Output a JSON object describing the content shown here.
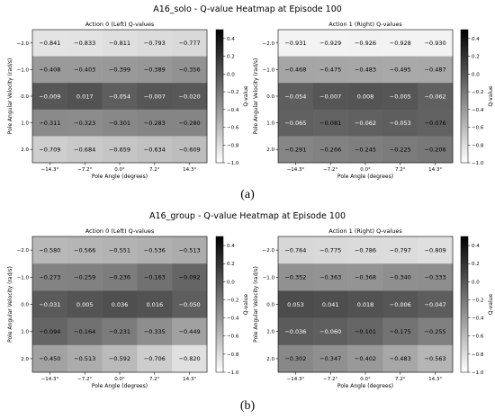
{
  "captions": [
    "(a)",
    "(b)"
  ],
  "color_scale": {
    "low": "#ffffff",
    "high": "#000000"
  },
  "chart_data": [
    {
      "type": "heatmap",
      "suptitle": "A16_solo - Q-value Heatmap at Episode 100",
      "panels": [
        {
          "title": "Action 0 (Left) Q-values",
          "xlabel": "Pole Angle (degrees)",
          "ylabel": "Pole Angular Velocity (rad/s)",
          "x_ticks": [
            "−14.3°",
            "−7.2°",
            "0.0°",
            "7.2°",
            "14.3°"
          ],
          "y_ticks": [
            "−2.0",
            "−1.0",
            "0.0",
            "1.0",
            "2.0"
          ],
          "values": [
            [
              -0.841,
              -0.833,
              -0.811,
              -0.793,
              -0.777
            ],
            [
              -0.408,
              -0.403,
              -0.399,
              -0.389,
              -0.356
            ],
            [
              -0.009,
              0.017,
              -0.054,
              -0.007,
              -0.02
            ],
            [
              -0.311,
              -0.323,
              -0.301,
              -0.283,
              -0.28
            ],
            [
              -0.709,
              -0.684,
              -0.659,
              -0.634,
              -0.609
            ]
          ],
          "labels": [
            [
              "−0.841",
              "−0.833",
              "−0.811",
              "−0.793",
              "−0.777"
            ],
            [
              "−0.408",
              "−0.403",
              "−0.399",
              "−0.389",
              "−0.356"
            ],
            [
              "−0.009",
              "0.017",
              "−0.054",
              "−0.007",
              "−0.020"
            ],
            [
              "−0.311",
              "−0.323",
              "−0.301",
              "−0.283",
              "−0.280"
            ],
            [
              "−0.709",
              "−0.684",
              "−0.659",
              "−0.634",
              "−0.609"
            ]
          ],
          "colorbar": {
            "label": "Q-value",
            "min": -1.0,
            "max": 0.5,
            "ticks": [
              0.4,
              0.2,
              0.0,
              -0.2,
              -0.4,
              -0.6,
              -0.8,
              -1.0
            ],
            "tick_labels": [
              "0.4",
              "0.2",
              "0.0",
              "−0.2",
              "−0.4",
              "−0.6",
              "−0.8",
              "−1.0"
            ]
          }
        },
        {
          "title": "Action 1 (Right) Q-values",
          "xlabel": "Pole Angle (degrees)",
          "ylabel": "Pole Angular Velocity (rad/s)",
          "x_ticks": [
            "−14.3°",
            "−7.2°",
            "0.0°",
            "7.2°",
            "14.3°"
          ],
          "y_ticks": [
            "−2.0",
            "−1.0",
            "0.0",
            "1.0",
            "2.0"
          ],
          "values": [
            [
              -0.931,
              -0.929,
              -0.926,
              -0.928,
              -0.93
            ],
            [
              -0.468,
              -0.475,
              -0.483,
              -0.495,
              -0.487
            ],
            [
              -0.054,
              -0.007,
              0.008,
              -0.005,
              -0.062
            ],
            [
              -0.065,
              -0.081,
              -0.062,
              -0.053,
              -0.076
            ],
            [
              -0.291,
              -0.266,
              -0.245,
              -0.225,
              -0.206
            ]
          ],
          "labels": [
            [
              "−0.931",
              "−0.929",
              "−0.926",
              "−0.928",
              "−0.930"
            ],
            [
              "−0.468",
              "−0.475",
              "−0.483",
              "−0.495",
              "−0.487"
            ],
            [
              "−0.054",
              "−0.007",
              "0.008",
              "−0.005",
              "−0.062"
            ],
            [
              "−0.065",
              "−0.081",
              "−0.062",
              "−0.053",
              "−0.076"
            ],
            [
              "−0.291",
              "−0.266",
              "−0.245",
              "−0.225",
              "−0.206"
            ]
          ],
          "colorbar": {
            "label": "Q-value",
            "min": -1.0,
            "max": 0.5,
            "ticks": [
              0.4,
              0.2,
              0.0,
              -0.2,
              -0.4,
              -0.6,
              -0.8,
              -1.0
            ],
            "tick_labels": [
              "0.4",
              "0.2",
              "0.0",
              "−0.2",
              "−0.4",
              "−0.6",
              "−0.8",
              "−1.0"
            ]
          }
        }
      ]
    },
    {
      "type": "heatmap",
      "suptitle": "A16_group - Q-value Heatmap at Episode 100",
      "panels": [
        {
          "title": "Action 0 (Left) Q-values",
          "xlabel": "Pole Angle (degrees)",
          "ylabel": "Pole Angular Velocity (rad/s)",
          "x_ticks": [
            "−14.3°",
            "−7.2°",
            "0.0°",
            "7.2°",
            "14.3°"
          ],
          "y_ticks": [
            "−2.0",
            "−1.0",
            "0.0",
            "1.0",
            "2.0"
          ],
          "values": [
            [
              -0.58,
              -0.566,
              -0.551,
              -0.536,
              -0.513
            ],
            [
              -0.273,
              -0.259,
              -0.236,
              -0.163,
              -0.092
            ],
            [
              -0.031,
              0.005,
              0.036,
              0.016,
              -0.05
            ],
            [
              -0.094,
              -0.164,
              -0.231,
              -0.335,
              -0.449
            ],
            [
              -0.45,
              -0.513,
              -0.592,
              -0.706,
              -0.82
            ]
          ],
          "labels": [
            [
              "−0.580",
              "−0.566",
              "−0.551",
              "−0.536",
              "−0.513"
            ],
            [
              "−0.273",
              "−0.259",
              "−0.236",
              "−0.163",
              "−0.092"
            ],
            [
              "−0.031",
              "0.005",
              "0.036",
              "0.016",
              "−0.050"
            ],
            [
              "−0.094",
              "−0.164",
              "−0.231",
              "−0.335",
              "−0.449"
            ],
            [
              "−0.450",
              "−0.513",
              "−0.592",
              "−0.706",
              "−0.820"
            ]
          ],
          "colorbar": {
            "label": "Q-value",
            "min": -1.0,
            "max": 0.5,
            "ticks": [
              0.4,
              0.2,
              0.0,
              -0.2,
              -0.4,
              -0.6,
              -0.8,
              -1.0
            ],
            "tick_labels": [
              "0.4",
              "0.2",
              "0.0",
              "−0.2",
              "−0.4",
              "−0.6",
              "−0.8",
              "−1.0"
            ]
          }
        },
        {
          "title": "Action 1 (Right) Q-values",
          "xlabel": "Pole Angle (degrees)",
          "ylabel": "Pole Angular Velocity (rad/s)",
          "x_ticks": [
            "−14.3°",
            "−7.2°",
            "0.0°",
            "7.2°",
            "14.3°"
          ],
          "y_ticks": [
            "−2.0",
            "−1.0",
            "0.0",
            "1.0",
            "2.0"
          ],
          "values": [
            [
              -0.764,
              -0.775,
              -0.786,
              -0.797,
              -0.809
            ],
            [
              -0.352,
              -0.363,
              -0.368,
              -0.34,
              -0.333
            ],
            [
              0.053,
              0.041,
              0.018,
              -0.006,
              -0.047
            ],
            [
              -0.036,
              -0.06,
              -0.101,
              -0.175,
              -0.255
            ],
            [
              -0.302,
              -0.347,
              -0.402,
              -0.483,
              -0.563
            ]
          ],
          "labels": [
            [
              "−0.764",
              "−0.775",
              "−0.786",
              "−0.797",
              "−0.809"
            ],
            [
              "−0.352",
              "−0.363",
              "−0.368",
              "−0.340",
              "−0.333"
            ],
            [
              "0.053",
              "0.041",
              "0.018",
              "−0.006",
              "−0.047"
            ],
            [
              "−0.036",
              "−0.060",
              "−0.101",
              "−0.175",
              "−0.255"
            ],
            [
              "−0.302",
              "−0.347",
              "−0.402",
              "−0.483",
              "−0.563"
            ]
          ],
          "colorbar": {
            "label": "Q-value",
            "min": -1.0,
            "max": 0.5,
            "ticks": [
              0.4,
              0.2,
              0.0,
              -0.2,
              -0.4,
              -0.6,
              -0.8,
              -1.0
            ],
            "tick_labels": [
              "0.4",
              "0.2",
              "0.0",
              "−0.2",
              "−0.4",
              "−0.6",
              "−0.8",
              "−1.0"
            ]
          }
        }
      ]
    }
  ]
}
